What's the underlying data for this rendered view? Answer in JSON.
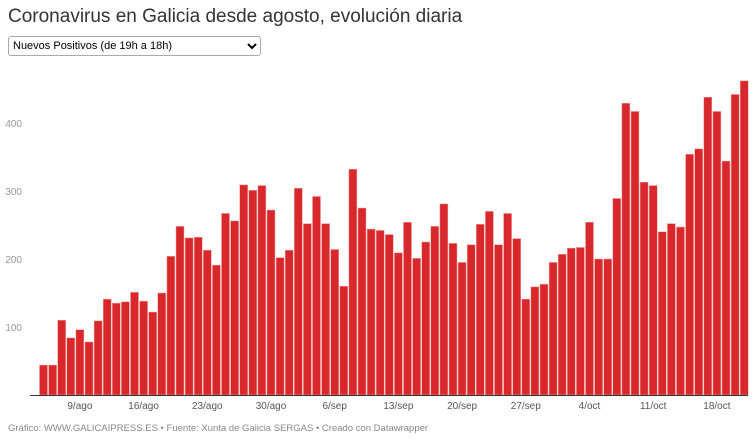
{
  "title": "Coronavirus en Galicia desde agosto, evolución diaria",
  "selector": {
    "selected": "Nuevos Positivos (de 19h a 18h)"
  },
  "footer": "Gráfico: WWW.GALICAIPRESS.ES • Fuente: Xunta de Galicia SERGAS • Creado con Datawrapper",
  "chart_data": {
    "type": "bar",
    "color": "#d8282b",
    "start_date": "5/ago",
    "x_tick_labels": [
      "9/ago",
      "16/ago",
      "23/ago",
      "30/ago",
      "6/sep",
      "13/sep",
      "20/sep",
      "27/sep",
      "4/oct",
      "11/oct",
      "18/oct"
    ],
    "x_tick_bar_index": [
      4,
      11,
      18,
      25,
      32,
      39,
      46,
      53,
      60,
      67,
      74
    ],
    "y_ticks": [
      100,
      200,
      300,
      400
    ],
    "ylim": [
      0,
      470
    ],
    "grid": false,
    "values": [
      44,
      44,
      110,
      84,
      96,
      78,
      109,
      141,
      135,
      137,
      151,
      138,
      122,
      150,
      204,
      248,
      231,
      232,
      213,
      191,
      267,
      256,
      309,
      301,
      308,
      272,
      202,
      213,
      304,
      252,
      292,
      252,
      214,
      160,
      332,
      275,
      244,
      242,
      236,
      209,
      254,
      201,
      225,
      248,
      281,
      223,
      195,
      221,
      251,
      270,
      221,
      267,
      230,
      141,
      159,
      163,
      195,
      207,
      216,
      217,
      254,
      200,
      200,
      289,
      429,
      417,
      313,
      308,
      240,
      252,
      247,
      354,
      362,
      438,
      417,
      344,
      442,
      462
    ]
  }
}
